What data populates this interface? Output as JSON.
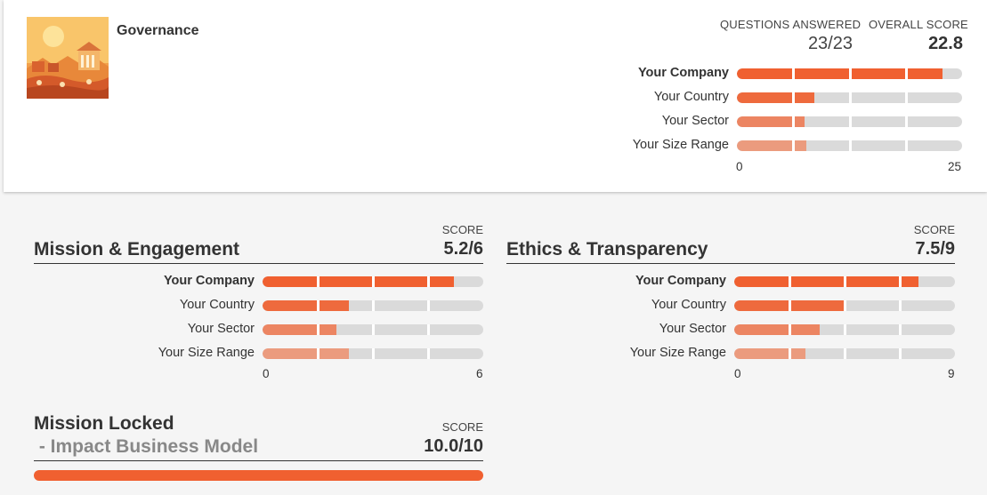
{
  "governance": {
    "title": "Governance",
    "questions_label": "QUESTIONS ANSWERED",
    "questions_value": "23/23",
    "overall_label": "OVERALL SCORE",
    "overall_value": "22.8",
    "axis_min": "0",
    "axis_max": "25",
    "max": 25,
    "rows": [
      {
        "label": "Your Company",
        "value": 22.8
      },
      {
        "label": "Your Country",
        "value": 8.6
      },
      {
        "label": "Your Sector",
        "value": 7.5
      },
      {
        "label": "Your Size Range",
        "value": 7.7
      }
    ]
  },
  "mission": {
    "title": "Mission & Engagement",
    "score_label": "SCORE",
    "score": "5.2/6",
    "axis_min": "0",
    "axis_max": "6",
    "max": 6,
    "rows": [
      {
        "label": "Your Company",
        "value": 5.2
      },
      {
        "label": "Your Country",
        "value": 2.35
      },
      {
        "label": "Your Sector",
        "value": 2.0
      },
      {
        "label": "Your Size Range",
        "value": 2.35
      }
    ]
  },
  "ethics": {
    "title": "Ethics & Transparency",
    "score_label": "SCORE",
    "score": "7.5/9",
    "axis_min": "0",
    "axis_max": "9",
    "max": 9,
    "rows": [
      {
        "label": "Your Company",
        "value": 7.5
      },
      {
        "label": "Your Country",
        "value": 4.5
      },
      {
        "label": "Your Sector",
        "value": 3.5
      },
      {
        "label": "Your Size Range",
        "value": 2.9
      }
    ]
  },
  "locked": {
    "title": "Mission Locked",
    "subtitle": " - Impact Business Model",
    "score_label": "SCORE",
    "score": "10.0/10",
    "value": 10,
    "max": 10
  }
}
